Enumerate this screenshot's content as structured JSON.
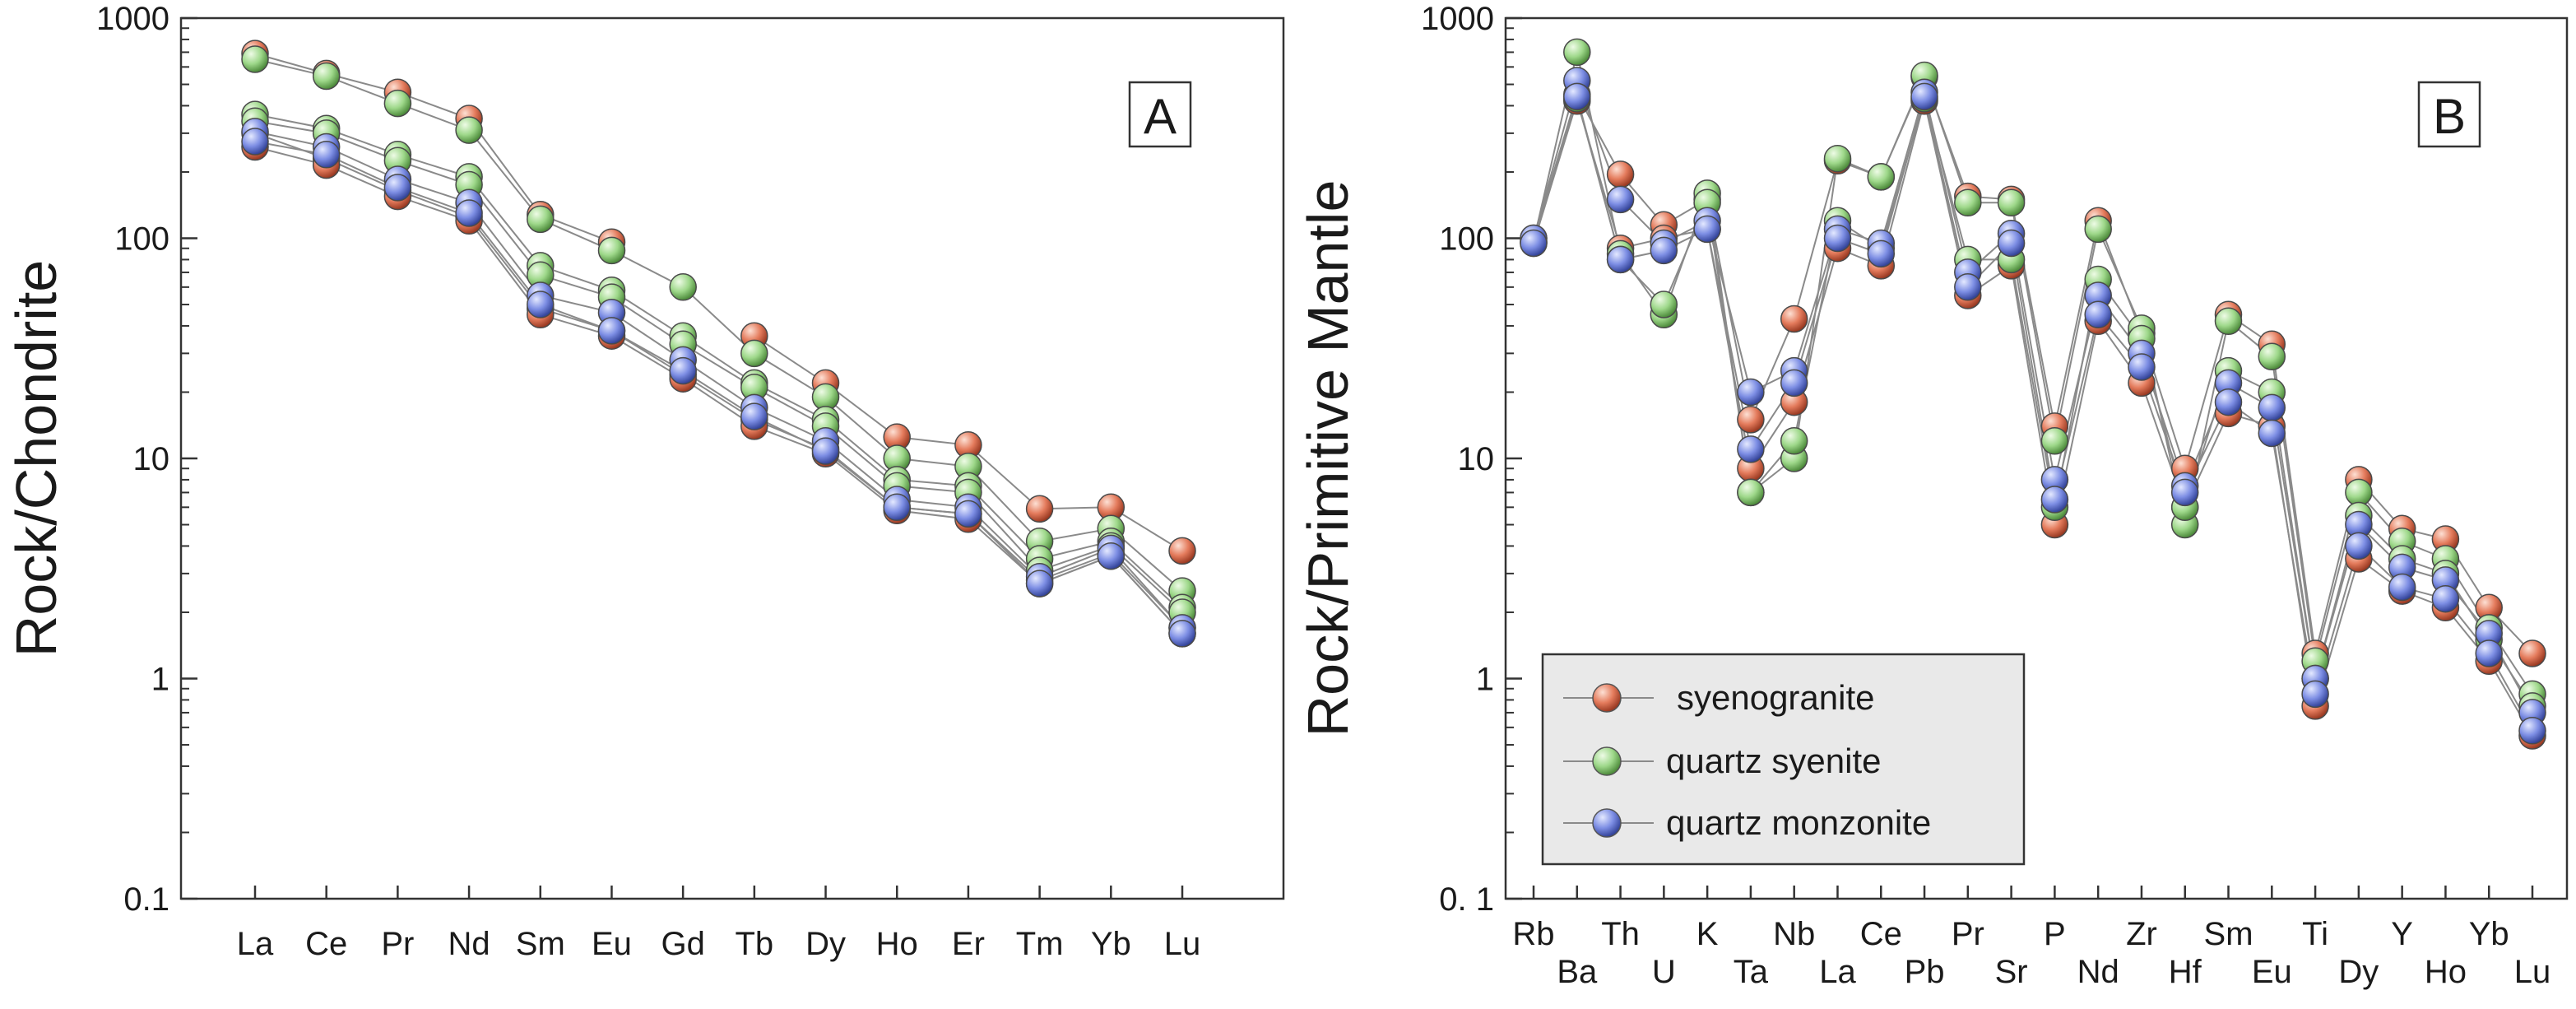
{
  "chart_data": [
    {
      "type": "line",
      "panel_label": "A",
      "ylabel": "Rock/Chondrite",
      "yscale": "log",
      "ylim": [
        0.1,
        1000
      ],
      "ytick_labels": [
        "0.1",
        "1",
        "10",
        "100",
        "1000"
      ],
      "categories": [
        "La",
        "Ce",
        "Pr",
        "Nd",
        "Sm",
        "Eu",
        "Gd",
        "Tb",
        "Dy",
        "Ho",
        "Er",
        "Tm",
        "Yb",
        "Lu"
      ],
      "series": [
        {
          "name": "syenogranite",
          "group": "syenogranite",
          "values": [
            690,
            560,
            460,
            350,
            128,
            96,
            null,
            36,
            22,
            12.5,
            11.5,
            5.9,
            6.0,
            3.8
          ]
        },
        {
          "name": "syenogranite",
          "group": "syenogranite",
          "values": [
            300,
            230,
            165,
            125,
            48,
            38,
            24,
            15,
            11,
            6.0,
            5.6,
            2.8,
            3.7,
            1.7
          ]
        },
        {
          "name": "syenogranite",
          "group": "syenogranite",
          "values": [
            260,
            215,
            155,
            120,
            45,
            36,
            23,
            14,
            10.5,
            5.8,
            5.3,
            2.7,
            3.6,
            1.6
          ]
        },
        {
          "name": "quartz syenite",
          "group": "quartz syenite",
          "values": [
            650,
            545,
            410,
            310,
            122,
            88,
            60,
            30,
            19,
            10,
            9.2,
            4.2,
            4.8,
            2.5
          ]
        },
        {
          "name": "quartz syenite",
          "group": "quartz syenite",
          "values": [
            365,
            315,
            240,
            190,
            75,
            58,
            36,
            22,
            15,
            8,
            7.5,
            3.5,
            4.2,
            2.1
          ]
        },
        {
          "name": "quartz syenite",
          "group": "quartz syenite",
          "values": [
            340,
            300,
            225,
            175,
            68,
            54,
            33,
            21,
            14,
            7.5,
            7,
            3.1,
            4.0,
            2.0
          ]
        },
        {
          "name": "quartz monzonite",
          "group": "quartz monzonite",
          "values": [
            305,
            260,
            185,
            145,
            55,
            46,
            28,
            17,
            12,
            6.5,
            6.0,
            2.9,
            3.9,
            1.7
          ]
        },
        {
          "name": "quartz monzonite",
          "group": "quartz monzonite",
          "values": [
            275,
            240,
            170,
            130,
            50,
            38,
            25,
            15.5,
            10.8,
            6.0,
            5.6,
            2.7,
            3.6,
            1.6
          ]
        }
      ]
    },
    {
      "type": "line",
      "panel_label": "B",
      "ylabel": "Rock/Primitive Mantle",
      "yscale": "log",
      "ylim": [
        0.1,
        1000
      ],
      "ytick_labels": [
        "0. 1",
        "1",
        "10",
        "100",
        "1000"
      ],
      "categories": [
        "Rb",
        "Ba",
        "Th",
        "U",
        "K",
        "Ta",
        "Nb",
        "La",
        "Ce",
        "Pb",
        "Pr",
        "Sr",
        "P",
        "Nd",
        "Zr",
        "Hf",
        "Sm",
        "Eu",
        "Ti",
        "Dy",
        "Y",
        "Ho",
        "Yb",
        "Lu"
      ],
      "series": [
        {
          "name": "syenogranite",
          "group": "syenogranite",
          "values": [
            100,
            450,
            195,
            115,
            150,
            15,
            43,
            225,
            190,
            540,
            155,
            150,
            14,
            120,
            37,
            9,
            45,
            33,
            1.3,
            8,
            4.8,
            4.3,
            2.1,
            1.3
          ]
        },
        {
          "name": "syenogranite",
          "group": "syenogranite",
          "values": [
            95,
            420,
            90,
            100,
            110,
            9,
            18,
            90,
            75,
            420,
            55,
            75,
            5,
            42,
            22,
            6,
            16,
            14,
            0.75,
            3.5,
            2.5,
            2.1,
            1.2,
            0.55
          ]
        },
        {
          "name": "quartz syenite",
          "group": "quartz syenite",
          "values": [
            97,
            700,
            85,
            45,
            160,
            7,
            10,
            230,
            190,
            550,
            145,
            145,
            12,
            110,
            39,
            5,
            42,
            29,
            1.2,
            7,
            4.2,
            3.5,
            1.7,
            0.85
          ]
        },
        {
          "name": "quartz syenite",
          "group": "quartz syenite",
          "values": [
            96,
            430,
            80,
            50,
            145,
            7,
            12,
            120,
            90,
            430,
            80,
            80,
            6,
            65,
            35,
            6,
            25,
            20,
            1.0,
            5.5,
            3.5,
            3,
            1.5,
            0.75
          ]
        },
        {
          "name": "quartz monzonite",
          "group": "quartz monzonite",
          "values": [
            100,
            520,
            150,
            95,
            120,
            20,
            25,
            110,
            95,
            460,
            70,
            105,
            8,
            55,
            30,
            7.5,
            22,
            17,
            1.0,
            5,
            3.2,
            2.8,
            1.6,
            0.7
          ]
        },
        {
          "name": "quartz monzonite",
          "group": "quartz monzonite",
          "values": [
            95,
            440,
            80,
            88,
            110,
            11,
            22,
            100,
            85,
            440,
            60,
            95,
            6.5,
            45,
            26,
            7,
            18,
            13,
            0.85,
            4,
            2.6,
            2.3,
            1.3,
            0.58
          ]
        }
      ]
    }
  ],
  "legend": {
    "items": [
      {
        "label": "syenogranite",
        "group": "syenogranite"
      },
      {
        "label": "quartz syenite",
        "group": "quartz syenite"
      },
      {
        "label": "quartz monzonite",
        "group": "quartz monzonite"
      }
    ]
  },
  "colors": {
    "syenogranite": "#e47b5c",
    "quartz syenite": "#9ed88a",
    "quartz monzonite": "#7d8ee4",
    "line": "#8a8a8a",
    "axis": "#333333"
  }
}
